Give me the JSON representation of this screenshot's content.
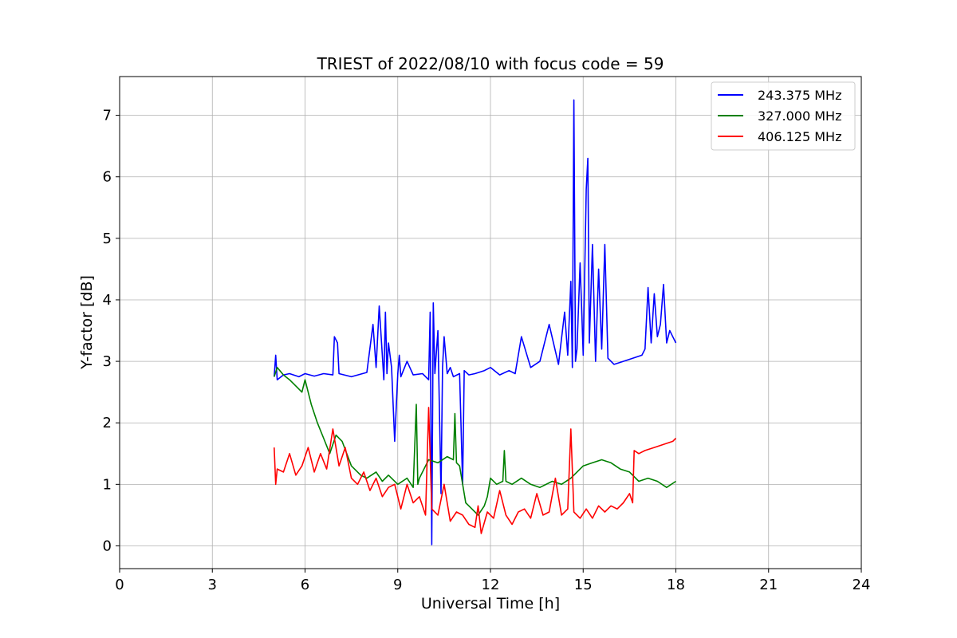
{
  "chart_data": {
    "type": "line",
    "title": "TRIEST of 2022/08/10 with focus code = 59",
    "xlabel": "Universal Time [h]",
    "ylabel": "Y-factor [dB]",
    "xlim": [
      0,
      24
    ],
    "ylim": [
      -0.37,
      7.63
    ],
    "xticks": [
      0,
      3,
      6,
      9,
      12,
      15,
      18,
      21,
      24
    ],
    "yticks": [
      0,
      1,
      2,
      3,
      4,
      5,
      6,
      7
    ],
    "grid": true,
    "legend_position": "top-right",
    "series": [
      {
        "name": "243.375 MHz",
        "color": "#0000ff",
        "x": [
          5.0,
          5.05,
          5.1,
          5.3,
          5.5,
          5.8,
          6.0,
          6.3,
          6.6,
          6.9,
          6.95,
          7.05,
          7.1,
          7.5,
          8.0,
          8.2,
          8.3,
          8.4,
          8.5,
          8.55,
          8.6,
          8.65,
          8.7,
          8.8,
          8.9,
          9.0,
          9.05,
          9.1,
          9.3,
          9.5,
          9.8,
          10.0,
          10.05,
          10.1,
          10.15,
          10.2,
          10.3,
          10.4,
          10.45,
          10.5,
          10.6,
          10.7,
          10.8,
          11.0,
          11.1,
          11.15,
          11.3,
          11.5,
          11.8,
          12.0,
          12.3,
          12.6,
          12.8,
          13.0,
          13.3,
          13.6,
          13.9,
          14.2,
          14.4,
          14.5,
          14.6,
          14.65,
          14.7,
          14.75,
          14.8,
          14.9,
          15.0,
          15.1,
          15.15,
          15.2,
          15.3,
          15.4,
          15.5,
          15.6,
          15.7,
          15.8,
          16.0,
          16.3,
          16.6,
          16.9,
          17.0,
          17.1,
          17.2,
          17.3,
          17.4,
          17.5,
          17.6,
          17.7,
          17.8,
          17.9,
          18.0
        ],
        "values": [
          2.75,
          3.1,
          2.7,
          2.78,
          2.8,
          2.75,
          2.8,
          2.76,
          2.8,
          2.78,
          3.4,
          3.3,
          2.8,
          2.75,
          2.82,
          3.6,
          2.9,
          3.9,
          3.1,
          2.7,
          3.8,
          2.8,
          3.3,
          2.9,
          1.7,
          2.8,
          3.1,
          2.75,
          3.0,
          2.78,
          2.8,
          2.7,
          3.8,
          0.02,
          3.95,
          2.8,
          3.5,
          0.85,
          2.9,
          3.4,
          2.8,
          2.9,
          2.75,
          2.8,
          1.0,
          2.85,
          2.78,
          2.8,
          2.85,
          2.9,
          2.78,
          2.85,
          2.8,
          3.4,
          2.9,
          3.0,
          3.6,
          2.95,
          3.8,
          3.1,
          4.3,
          2.9,
          7.25,
          3.0,
          3.2,
          4.6,
          3.1,
          5.8,
          6.3,
          3.3,
          4.9,
          3.0,
          4.5,
          3.2,
          4.9,
          3.05,
          2.95,
          3.0,
          3.05,
          3.1,
          3.2,
          4.2,
          3.3,
          4.1,
          3.4,
          3.6,
          4.25,
          3.3,
          3.5,
          3.4,
          3.3
        ]
      },
      {
        "name": "327.000 MHz",
        "color": "#008000",
        "x": [
          5.0,
          5.1,
          5.3,
          5.5,
          5.7,
          5.9,
          6.0,
          6.2,
          6.4,
          6.6,
          6.8,
          7.0,
          7.2,
          7.5,
          7.8,
          8.0,
          8.3,
          8.5,
          8.7,
          9.0,
          9.3,
          9.5,
          9.6,
          9.65,
          9.7,
          9.9,
          10.0,
          10.3,
          10.6,
          10.8,
          10.85,
          10.9,
          11.0,
          11.2,
          11.4,
          11.6,
          11.8,
          11.9,
          12.0,
          12.2,
          12.4,
          12.45,
          12.5,
          12.7,
          13.0,
          13.3,
          13.6,
          14.0,
          14.3,
          14.6,
          15.0,
          15.3,
          15.6,
          15.9,
          16.2,
          16.5,
          16.8,
          17.1,
          17.4,
          17.7,
          18.0
        ],
        "values": [
          2.75,
          2.9,
          2.78,
          2.7,
          2.6,
          2.5,
          2.7,
          2.3,
          2.0,
          1.75,
          1.5,
          1.8,
          1.7,
          1.3,
          1.15,
          1.1,
          1.2,
          1.05,
          1.15,
          1.0,
          1.1,
          0.95,
          2.3,
          1.0,
          1.1,
          1.3,
          1.4,
          1.35,
          1.45,
          1.4,
          2.15,
          1.35,
          1.3,
          0.7,
          0.6,
          0.5,
          0.65,
          0.8,
          1.1,
          1.0,
          1.05,
          1.55,
          1.05,
          1.0,
          1.1,
          1.0,
          0.95,
          1.05,
          1.0,
          1.1,
          1.3,
          1.35,
          1.4,
          1.35,
          1.25,
          1.2,
          1.05,
          1.1,
          1.05,
          0.95,
          1.05
        ]
      },
      {
        "name": "406.125 MHz",
        "color": "#ff0000",
        "x": [
          5.0,
          5.05,
          5.1,
          5.3,
          5.5,
          5.7,
          5.9,
          6.1,
          6.3,
          6.5,
          6.7,
          6.9,
          7.1,
          7.3,
          7.5,
          7.7,
          7.9,
          8.1,
          8.3,
          8.5,
          8.7,
          8.9,
          9.1,
          9.3,
          9.5,
          9.7,
          9.9,
          10.0,
          10.1,
          10.3,
          10.5,
          10.7,
          10.9,
          11.1,
          11.3,
          11.5,
          11.6,
          11.7,
          11.9,
          12.1,
          12.3,
          12.5,
          12.7,
          12.9,
          13.1,
          13.3,
          13.5,
          13.7,
          13.9,
          14.1,
          14.3,
          14.5,
          14.6,
          14.7,
          14.9,
          15.1,
          15.3,
          15.5,
          15.7,
          15.9,
          16.1,
          16.3,
          16.5,
          16.6,
          16.65,
          16.8,
          17.0,
          17.3,
          17.6,
          17.9,
          18.0
        ],
        "values": [
          1.6,
          1.0,
          1.25,
          1.2,
          1.5,
          1.15,
          1.3,
          1.6,
          1.2,
          1.5,
          1.25,
          1.9,
          1.3,
          1.6,
          1.1,
          1.0,
          1.2,
          0.9,
          1.1,
          0.8,
          0.95,
          1.0,
          0.6,
          1.0,
          0.7,
          0.8,
          0.5,
          2.25,
          0.6,
          0.5,
          1.0,
          0.4,
          0.55,
          0.5,
          0.35,
          0.3,
          0.65,
          0.2,
          0.55,
          0.45,
          0.9,
          0.5,
          0.35,
          0.55,
          0.6,
          0.45,
          0.85,
          0.5,
          0.55,
          1.1,
          0.5,
          0.6,
          1.9,
          0.55,
          0.45,
          0.6,
          0.45,
          0.65,
          0.55,
          0.65,
          0.6,
          0.7,
          0.85,
          0.7,
          1.55,
          1.5,
          1.55,
          1.6,
          1.65,
          1.7,
          1.75
        ]
      }
    ]
  }
}
